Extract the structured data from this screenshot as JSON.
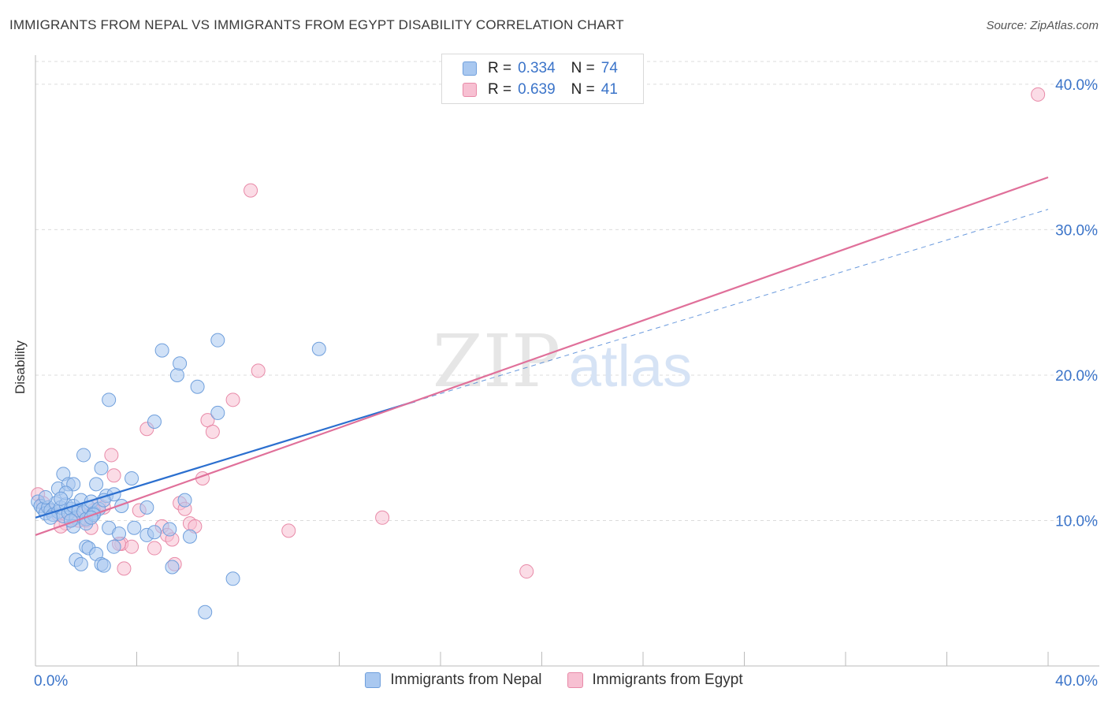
{
  "header": {
    "title": "IMMIGRANTS FROM NEPAL VS IMMIGRANTS FROM EGYPT DISABILITY CORRELATION CHART",
    "source": "Source: ZipAtlas.com"
  },
  "legend": {
    "r_label": "R =",
    "n_label": "N =",
    "series": [
      {
        "name": "Immigrants from Nepal",
        "r": "0.334",
        "n": "74"
      },
      {
        "name": "Immigrants from Egypt",
        "r": "0.639",
        "n": "41"
      }
    ]
  },
  "watermark": {
    "zip": "ZIP",
    "atlas": "atlas"
  },
  "colors": {
    "nepal_fill": "#a9c8f0",
    "nepal_stroke": "#6f9fdc",
    "nepal_line": "#2b6fcf",
    "egypt_fill": "#f7c0d2",
    "egypt_stroke": "#e88aa8",
    "egypt_line": "#e0709a",
    "axis_label": "#3b74c9",
    "grid": "#dcdcdc"
  },
  "chart_data": {
    "type": "scatter",
    "title": "IMMIGRANTS FROM NEPAL VS IMMIGRANTS FROM EGYPT DISABILITY CORRELATION CHART",
    "xlabel": "",
    "ylabel": "Disability",
    "xlim": [
      0,
      40
    ],
    "ylim": [
      0,
      42
    ],
    "x_tick_labels": [
      "0.0%",
      "40.0%"
    ],
    "y_ticks": [
      10,
      20,
      30,
      40
    ],
    "y_tick_labels": [
      "10.0%",
      "20.0%",
      "30.0%",
      "40.0%"
    ],
    "grid": true,
    "legend_position": "top-center",
    "series": [
      {
        "name": "Immigrants from Nepal",
        "points": [
          [
            0.1,
            11.3
          ],
          [
            0.2,
            11.0
          ],
          [
            0.3,
            10.8
          ],
          [
            0.4,
            10.5
          ],
          [
            0.5,
            10.9
          ],
          [
            0.6,
            10.7
          ],
          [
            0.7,
            10.4
          ],
          [
            0.8,
            11.2
          ],
          [
            0.9,
            10.6
          ],
          [
            1.0,
            10.9
          ],
          [
            1.1,
            10.3
          ],
          [
            1.2,
            11.1
          ],
          [
            1.3,
            10.5
          ],
          [
            1.4,
            10.8
          ],
          [
            1.5,
            11.0
          ],
          [
            1.6,
            10.2
          ],
          [
            1.7,
            10.7
          ],
          [
            1.8,
            11.4
          ],
          [
            1.9,
            10.6
          ],
          [
            2.0,
            10.1
          ],
          [
            2.1,
            10.9
          ],
          [
            2.2,
            11.3
          ],
          [
            2.3,
            10.5
          ],
          [
            2.5,
            10.8
          ],
          [
            0.9,
            12.2
          ],
          [
            1.1,
            13.2
          ],
          [
            1.3,
            12.5
          ],
          [
            1.5,
            12.5
          ],
          [
            2.4,
            12.5
          ],
          [
            2.6,
            13.6
          ],
          [
            1.9,
            14.5
          ],
          [
            2.8,
            11.7
          ],
          [
            3.1,
            11.8
          ],
          [
            2.7,
            11.4
          ],
          [
            1.5,
            9.6
          ],
          [
            2.0,
            9.8
          ],
          [
            2.9,
            9.5
          ],
          [
            3.3,
            9.1
          ],
          [
            3.8,
            12.9
          ],
          [
            4.4,
            10.9
          ],
          [
            3.9,
            9.5
          ],
          [
            4.4,
            9.0
          ],
          [
            4.7,
            9.2
          ],
          [
            5.3,
            9.4
          ],
          [
            5.9,
            11.4
          ],
          [
            6.1,
            8.9
          ],
          [
            1.6,
            7.3
          ],
          [
            1.8,
            7.0
          ],
          [
            2.0,
            8.2
          ],
          [
            2.1,
            8.1
          ],
          [
            2.4,
            7.7
          ],
          [
            2.6,
            7.0
          ],
          [
            2.7,
            6.9
          ],
          [
            3.1,
            8.2
          ],
          [
            5.4,
            6.8
          ],
          [
            7.8,
            6.0
          ],
          [
            6.7,
            3.7
          ],
          [
            2.9,
            18.3
          ],
          [
            4.7,
            16.8
          ],
          [
            6.4,
            19.2
          ],
          [
            7.2,
            17.4
          ],
          [
            5.6,
            20.0
          ],
          [
            5.7,
            20.8
          ],
          [
            5.0,
            21.7
          ],
          [
            7.2,
            22.4
          ],
          [
            11.2,
            21.8
          ],
          [
            1.2,
            11.9
          ],
          [
            0.6,
            10.2
          ],
          [
            1.4,
            10.0
          ],
          [
            2.3,
            10.4
          ],
          [
            3.4,
            11.0
          ],
          [
            0.4,
            11.6
          ],
          [
            1.0,
            11.5
          ],
          [
            2.2,
            10.2
          ]
        ]
      },
      {
        "name": "Immigrants from Egypt",
        "points": [
          [
            0.1,
            11.8
          ],
          [
            0.3,
            11.2
          ],
          [
            0.6,
            10.7
          ],
          [
            0.9,
            10.4
          ],
          [
            1.2,
            9.8
          ],
          [
            1.5,
            10.1
          ],
          [
            1.8,
            10.5
          ],
          [
            2.0,
            10.0
          ],
          [
            2.2,
            9.5
          ],
          [
            2.5,
            11.1
          ],
          [
            2.7,
            10.9
          ],
          [
            3.0,
            14.5
          ],
          [
            3.1,
            13.1
          ],
          [
            3.4,
            8.4
          ],
          [
            3.5,
            6.7
          ],
          [
            3.8,
            8.2
          ],
          [
            4.1,
            10.7
          ],
          [
            4.4,
            16.3
          ],
          [
            4.7,
            8.1
          ],
          [
            5.0,
            9.6
          ],
          [
            5.2,
            9.0
          ],
          [
            5.4,
            8.7
          ],
          [
            5.5,
            7.0
          ],
          [
            5.7,
            11.2
          ],
          [
            5.9,
            10.8
          ],
          [
            6.1,
            9.8
          ],
          [
            6.3,
            9.6
          ],
          [
            6.6,
            12.9
          ],
          [
            6.8,
            16.9
          ],
          [
            7.0,
            16.1
          ],
          [
            7.8,
            18.3
          ],
          [
            8.8,
            20.3
          ],
          [
            8.5,
            32.7
          ],
          [
            10.0,
            9.3
          ],
          [
            13.7,
            10.2
          ],
          [
            19.4,
            6.5
          ],
          [
            39.6,
            39.3
          ],
          [
            1.0,
            9.6
          ],
          [
            1.7,
            10.0
          ],
          [
            2.3,
            10.7
          ],
          [
            3.3,
            8.4
          ]
        ]
      }
    ],
    "trend_lines": [
      {
        "series": "Immigrants from Nepal",
        "x": [
          0,
          15.0
        ],
        "y": [
          10.2,
          18.2
        ],
        "extension": {
          "x": [
            15.0,
            40
          ],
          "y": [
            18.2,
            31.4
          ]
        }
      },
      {
        "series": "Immigrants from Egypt",
        "x": [
          0,
          40
        ],
        "y": [
          9.0,
          33.6
        ]
      }
    ]
  }
}
